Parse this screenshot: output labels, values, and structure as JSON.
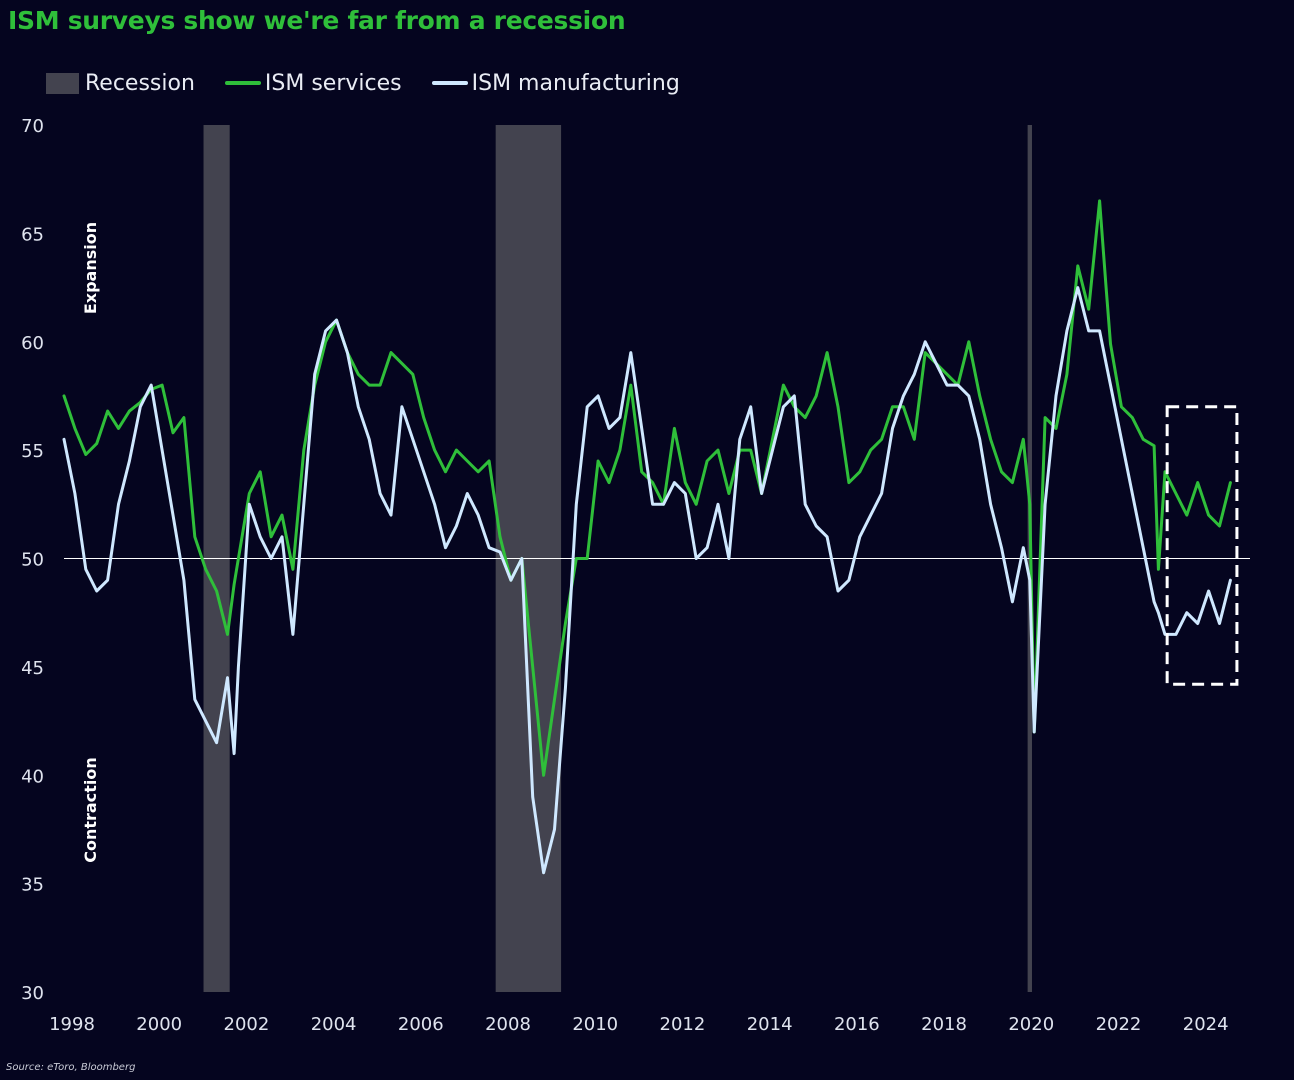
{
  "chart_data": {
    "type": "line",
    "title": "ISM surveys show we're far from a recession",
    "legend": [
      {
        "label": "Recession",
        "kind": "box",
        "color": "#43434f"
      },
      {
        "label": "ISM services",
        "kind": "line",
        "color": "#2fbf3a"
      },
      {
        "label": "ISM manufacturing",
        "kind": "line",
        "color": "#cfe8ff"
      }
    ],
    "legend_position": "top-left",
    "ylim": [
      30,
      70
    ],
    "y_ticks": [
      "70",
      "65",
      "60",
      "55",
      "50",
      "45",
      "40",
      "35",
      "30"
    ],
    "xlim": [
      1998.0,
      2025.2
    ],
    "x_ticks": [
      "1998",
      "2000",
      "2002",
      "2004",
      "2006",
      "2008",
      "2010",
      "2012",
      "2014",
      "2016",
      "2018",
      "2020",
      "2022",
      "2024"
    ],
    "reference_line": 50,
    "zone_labels": {
      "upper": "Expansion",
      "lower": "Contraction"
    },
    "recessions": [
      [
        2001.2,
        2001.8
      ],
      [
        2007.9,
        2009.4
      ],
      [
        2020.1,
        2020.2
      ]
    ],
    "highlight_box": {
      "x": [
        2023.3,
        2024.9
      ],
      "y": [
        44.2,
        57.0
      ],
      "style": "dashed"
    },
    "series": [
      {
        "name": "ISM services",
        "color": "#2fbf3a",
        "points": [
          [
            1998.0,
            57.5
          ],
          [
            1998.25,
            56.0
          ],
          [
            1998.5,
            54.8
          ],
          [
            1998.75,
            55.3
          ],
          [
            1999.0,
            56.8
          ],
          [
            1999.25,
            56.0
          ],
          [
            1999.5,
            56.8
          ],
          [
            1999.75,
            57.2
          ],
          [
            2000.0,
            57.8
          ],
          [
            2000.25,
            58.0
          ],
          [
            2000.5,
            55.8
          ],
          [
            2000.75,
            56.5
          ],
          [
            2001.0,
            51.0
          ],
          [
            2001.25,
            49.5
          ],
          [
            2001.5,
            48.5
          ],
          [
            2001.75,
            46.5
          ],
          [
            2001.9,
            48.8
          ],
          [
            2002.0,
            50.0
          ],
          [
            2002.25,
            53.0
          ],
          [
            2002.5,
            54.0
          ],
          [
            2002.75,
            51.0
          ],
          [
            2003.0,
            52.0
          ],
          [
            2003.25,
            49.5
          ],
          [
            2003.5,
            55.0
          ],
          [
            2003.75,
            58.0
          ],
          [
            2004.0,
            60.0
          ],
          [
            2004.25,
            61.0
          ],
          [
            2004.5,
            59.5
          ],
          [
            2004.75,
            58.5
          ],
          [
            2005.0,
            58.0
          ],
          [
            2005.25,
            58.0
          ],
          [
            2005.5,
            59.5
          ],
          [
            2005.75,
            59.0
          ],
          [
            2006.0,
            58.5
          ],
          [
            2006.25,
            56.5
          ],
          [
            2006.5,
            55.0
          ],
          [
            2006.75,
            54.0
          ],
          [
            2007.0,
            55.0
          ],
          [
            2007.25,
            54.5
          ],
          [
            2007.5,
            54.0
          ],
          [
            2007.75,
            54.5
          ],
          [
            2008.0,
            51.0
          ],
          [
            2008.25,
            49.0
          ],
          [
            2008.5,
            50.0
          ],
          [
            2008.75,
            45.0
          ],
          [
            2009.0,
            40.0
          ],
          [
            2009.25,
            43.5
          ],
          [
            2009.5,
            47.0
          ],
          [
            2009.75,
            50.0
          ],
          [
            2010.0,
            50.0
          ],
          [
            2010.25,
            54.5
          ],
          [
            2010.5,
            53.5
          ],
          [
            2010.75,
            55.0
          ],
          [
            2011.0,
            58.0
          ],
          [
            2011.25,
            54.0
          ],
          [
            2011.5,
            53.5
          ],
          [
            2011.75,
            52.5
          ],
          [
            2012.0,
            56.0
          ],
          [
            2012.25,
            53.5
          ],
          [
            2012.5,
            52.5
          ],
          [
            2012.75,
            54.5
          ],
          [
            2013.0,
            55.0
          ],
          [
            2013.25,
            53.0
          ],
          [
            2013.5,
            55.0
          ],
          [
            2013.75,
            55.0
          ],
          [
            2014.0,
            53.0
          ],
          [
            2014.25,
            55.5
          ],
          [
            2014.5,
            58.0
          ],
          [
            2014.75,
            57.0
          ],
          [
            2015.0,
            56.5
          ],
          [
            2015.25,
            57.5
          ],
          [
            2015.5,
            59.5
          ],
          [
            2015.75,
            57.0
          ],
          [
            2016.0,
            53.5
          ],
          [
            2016.25,
            54.0
          ],
          [
            2016.5,
            55.0
          ],
          [
            2016.75,
            55.5
          ],
          [
            2017.0,
            57.0
          ],
          [
            2017.25,
            57.0
          ],
          [
            2017.5,
            55.5
          ],
          [
            2017.75,
            59.5
          ],
          [
            2018.0,
            59.0
          ],
          [
            2018.25,
            58.5
          ],
          [
            2018.5,
            58.0
          ],
          [
            2018.75,
            60.0
          ],
          [
            2019.0,
            57.5
          ],
          [
            2019.25,
            55.5
          ],
          [
            2019.5,
            54.0
          ],
          [
            2019.75,
            53.5
          ],
          [
            2020.0,
            55.5
          ],
          [
            2020.15,
            52.5
          ],
          [
            2020.25,
            42.0
          ],
          [
            2020.5,
            56.5
          ],
          [
            2020.75,
            56.0
          ],
          [
            2021.0,
            58.5
          ],
          [
            2021.25,
            63.5
          ],
          [
            2021.5,
            61.5
          ],
          [
            2021.75,
            66.5
          ],
          [
            2021.9,
            62.5
          ],
          [
            2022.0,
            59.9
          ],
          [
            2022.25,
            57.0
          ],
          [
            2022.5,
            56.5
          ],
          [
            2022.75,
            55.5
          ],
          [
            2023.0,
            55.2
          ],
          [
            2023.1,
            49.5
          ],
          [
            2023.25,
            54.0
          ],
          [
            2023.5,
            53.0
          ],
          [
            2023.75,
            52.0
          ],
          [
            2024.0,
            53.5
          ],
          [
            2024.25,
            52.0
          ],
          [
            2024.5,
            51.5
          ],
          [
            2024.75,
            53.5
          ]
        ]
      },
      {
        "name": "ISM manufacturing",
        "color": "#cfe8ff",
        "points": [
          [
            1998.0,
            55.5
          ],
          [
            1998.25,
            53.0
          ],
          [
            1998.5,
            49.5
          ],
          [
            1998.75,
            48.5
          ],
          [
            1999.0,
            49.0
          ],
          [
            1999.25,
            52.5
          ],
          [
            1999.5,
            54.5
          ],
          [
            1999.75,
            57.0
          ],
          [
            2000.0,
            58.0
          ],
          [
            2000.25,
            55.0
          ],
          [
            2000.5,
            52.0
          ],
          [
            2000.75,
            49.0
          ],
          [
            2001.0,
            43.5
          ],
          [
            2001.25,
            42.5
          ],
          [
            2001.5,
            41.5
          ],
          [
            2001.75,
            44.5
          ],
          [
            2001.9,
            41.0
          ],
          [
            2002.0,
            45.0
          ],
          [
            2002.25,
            52.5
          ],
          [
            2002.5,
            51.0
          ],
          [
            2002.75,
            50.0
          ],
          [
            2003.0,
            51.0
          ],
          [
            2003.25,
            46.5
          ],
          [
            2003.5,
            52.5
          ],
          [
            2003.75,
            58.5
          ],
          [
            2004.0,
            60.5
          ],
          [
            2004.25,
            61.0
          ],
          [
            2004.5,
            59.5
          ],
          [
            2004.75,
            57.0
          ],
          [
            2005.0,
            55.5
          ],
          [
            2005.25,
            53.0
          ],
          [
            2005.5,
            52.0
          ],
          [
            2005.75,
            57.0
          ],
          [
            2006.0,
            55.5
          ],
          [
            2006.25,
            54.0
          ],
          [
            2006.5,
            52.5
          ],
          [
            2006.75,
            50.5
          ],
          [
            2007.0,
            51.5
          ],
          [
            2007.25,
            53.0
          ],
          [
            2007.5,
            52.0
          ],
          [
            2007.75,
            50.5
          ],
          [
            2008.0,
            50.3
          ],
          [
            2008.25,
            49.0
          ],
          [
            2008.5,
            50.0
          ],
          [
            2008.75,
            39.0
          ],
          [
            2009.0,
            35.5
          ],
          [
            2009.25,
            37.5
          ],
          [
            2009.5,
            44.0
          ],
          [
            2009.75,
            52.5
          ],
          [
            2010.0,
            57.0
          ],
          [
            2010.25,
            57.5
          ],
          [
            2010.5,
            56.0
          ],
          [
            2010.75,
            56.5
          ],
          [
            2011.0,
            59.5
          ],
          [
            2011.25,
            56.0
          ],
          [
            2011.5,
            52.5
          ],
          [
            2011.75,
            52.5
          ],
          [
            2012.0,
            53.5
          ],
          [
            2012.25,
            53.0
          ],
          [
            2012.5,
            50.0
          ],
          [
            2012.75,
            50.5
          ],
          [
            2013.0,
            52.5
          ],
          [
            2013.25,
            50.0
          ],
          [
            2013.5,
            55.5
          ],
          [
            2013.75,
            57.0
          ],
          [
            2014.0,
            53.0
          ],
          [
            2014.25,
            55.0
          ],
          [
            2014.5,
            57.0
          ],
          [
            2014.75,
            57.5
          ],
          [
            2015.0,
            52.5
          ],
          [
            2015.25,
            51.5
          ],
          [
            2015.5,
            51.0
          ],
          [
            2015.75,
            48.5
          ],
          [
            2016.0,
            49.0
          ],
          [
            2016.25,
            51.0
          ],
          [
            2016.5,
            52.0
          ],
          [
            2016.75,
            53.0
          ],
          [
            2017.0,
            56.0
          ],
          [
            2017.25,
            57.5
          ],
          [
            2017.5,
            58.5
          ],
          [
            2017.75,
            60.0
          ],
          [
            2018.0,
            59.0
          ],
          [
            2018.25,
            58.0
          ],
          [
            2018.5,
            58.0
          ],
          [
            2018.75,
            57.5
          ],
          [
            2019.0,
            55.5
          ],
          [
            2019.25,
            52.5
          ],
          [
            2019.5,
            50.5
          ],
          [
            2019.75,
            48.0
          ],
          [
            2020.0,
            50.5
          ],
          [
            2020.15,
            49.0
          ],
          [
            2020.25,
            42.0
          ],
          [
            2020.5,
            52.5
          ],
          [
            2020.75,
            57.5
          ],
          [
            2021.0,
            60.5
          ],
          [
            2021.25,
            62.5
          ],
          [
            2021.5,
            60.5
          ],
          [
            2021.75,
            60.5
          ],
          [
            2021.9,
            59.0
          ],
          [
            2022.0,
            58.0
          ],
          [
            2022.25,
            55.5
          ],
          [
            2022.5,
            53.0
          ],
          [
            2022.75,
            50.5
          ],
          [
            2023.0,
            48.0
          ],
          [
            2023.1,
            47.5
          ],
          [
            2023.25,
            46.5
          ],
          [
            2023.5,
            46.5
          ],
          [
            2023.75,
            47.5
          ],
          [
            2024.0,
            47.0
          ],
          [
            2024.25,
            48.5
          ],
          [
            2024.5,
            47.0
          ],
          [
            2024.75,
            49.0
          ]
        ]
      }
    ]
  },
  "source": "Source: eToro, Bloomberg"
}
